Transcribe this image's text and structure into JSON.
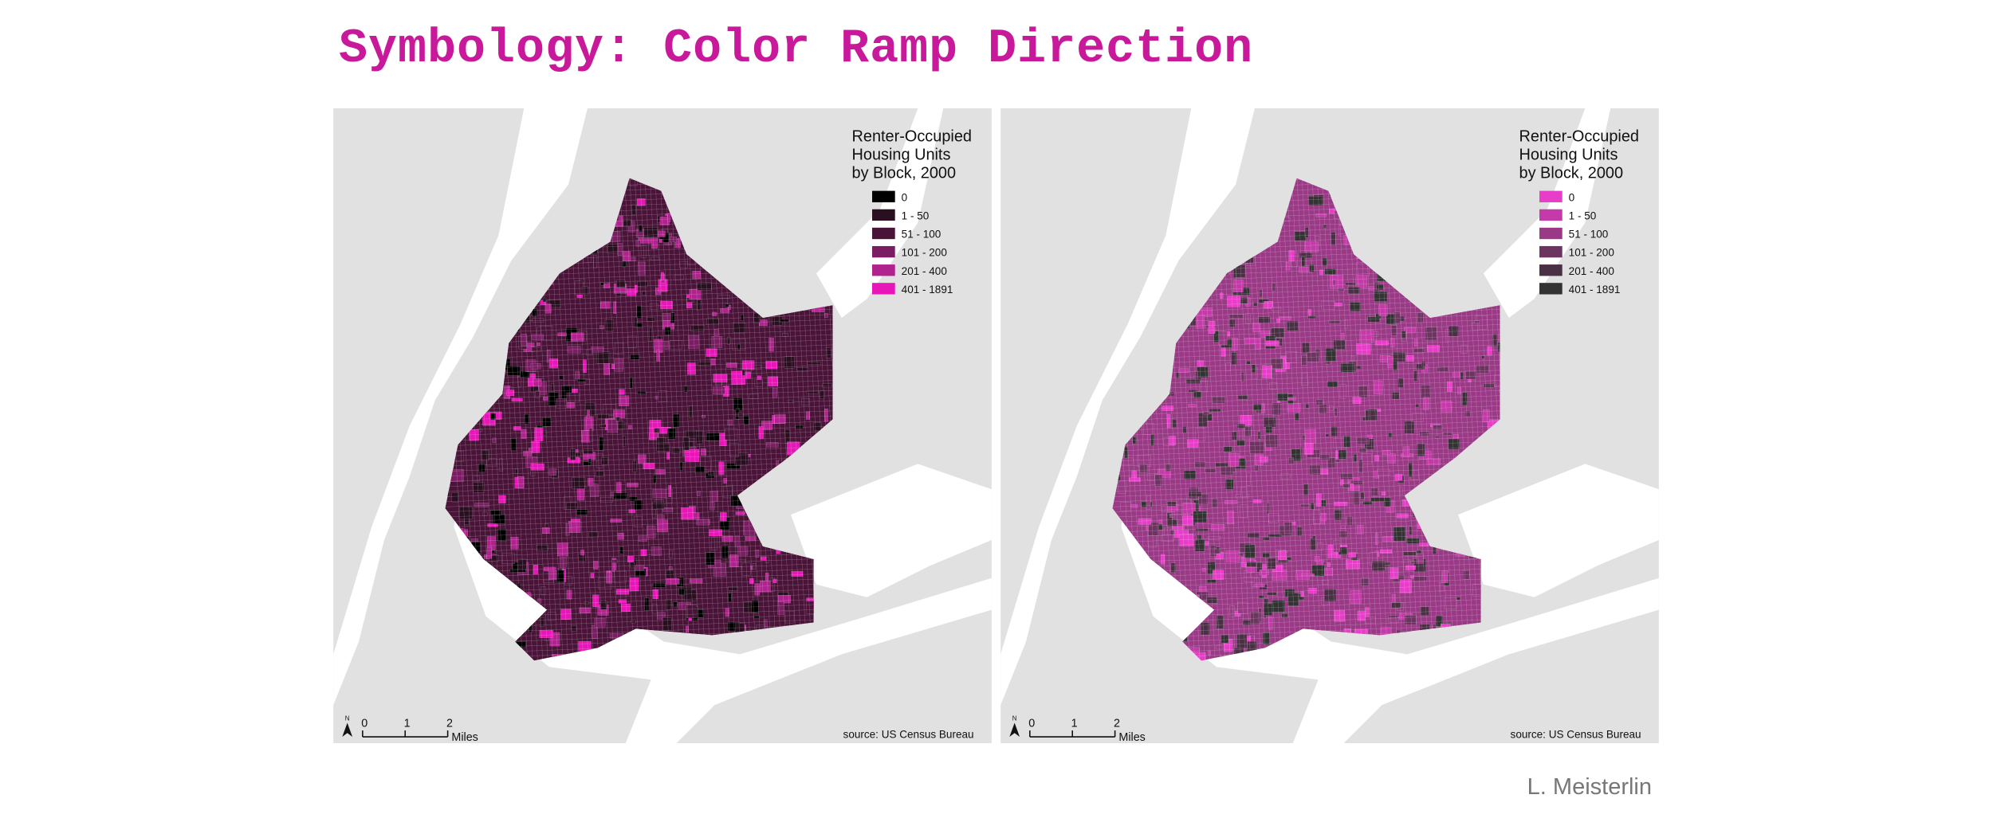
{
  "title": "Symbology: Color Ramp Direction",
  "maps": [
    {
      "legend_title": [
        "Renter-Occupied",
        "Housing Units",
        "by Block, 2000"
      ],
      "classes": [
        {
          "label": "0",
          "color": "#000000"
        },
        {
          "label": "1 - 50",
          "color": "#2a0f20"
        },
        {
          "label": "51 - 100",
          "color": "#4a1439"
        },
        {
          "label": "101 - 200",
          "color": "#7a1d63"
        },
        {
          "label": "201 - 400",
          "color": "#b0228e"
        },
        {
          "label": "401 - 1891",
          "color": "#e815b8"
        }
      ],
      "north": "N",
      "scale_ticks": [
        "0",
        "1",
        "2"
      ],
      "scale_unit": "Miles",
      "source": "source: US Census Bureau"
    },
    {
      "legend_title": [
        "Renter-Occupied",
        "Housing Units",
        "by Block, 2000"
      ],
      "classes": [
        {
          "label": "0",
          "color": "#e83dc8"
        },
        {
          "label": "1 - 50",
          "color": "#c43aa8"
        },
        {
          "label": "51 - 100",
          "color": "#9a3a86"
        },
        {
          "label": "101 - 200",
          "color": "#6e3461"
        },
        {
          "label": "201 - 400",
          "color": "#4a3044"
        },
        {
          "label": "401 - 1891",
          "color": "#333333"
        }
      ],
      "north": "N",
      "scale_ticks": [
        "0",
        "1",
        "2"
      ],
      "scale_unit": "Miles",
      "source": "source: US Census Bureau"
    }
  ],
  "author": "L. Meisterlin"
}
